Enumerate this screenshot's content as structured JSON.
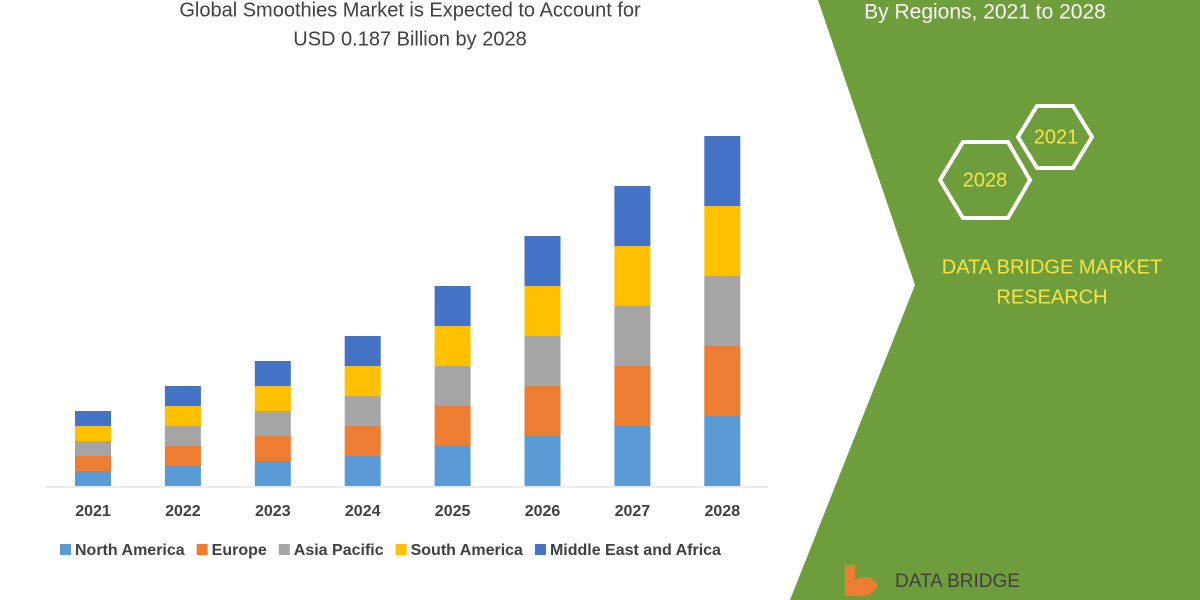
{
  "chart_data": {
    "type": "bar",
    "stacked": true,
    "title": [
      "Global Smoothies Market is Expected to Account for",
      "USD 0.187 Billion by 2028"
    ],
    "categories": [
      "2021",
      "2022",
      "2023",
      "2024",
      "2025",
      "2026",
      "2027",
      "2028"
    ],
    "series": [
      {
        "name": "North America",
        "color": "#5b9bd5",
        "values": [
          15,
          20,
          25,
          30,
          40,
          50,
          60,
          70
        ]
      },
      {
        "name": "Europe",
        "color": "#ed7d31",
        "values": [
          15,
          20,
          25,
          30,
          40,
          50,
          60,
          70
        ]
      },
      {
        "name": "Asia Pacific",
        "color": "#a5a5a5",
        "values": [
          15,
          20,
          25,
          30,
          40,
          50,
          60,
          70
        ]
      },
      {
        "name": "South America",
        "color": "#ffc000",
        "values": [
          15,
          20,
          25,
          30,
          40,
          50,
          60,
          70
        ]
      },
      {
        "name": "Middle East and Africa",
        "color": "#4472c4",
        "values": [
          15,
          20,
          25,
          30,
          40,
          50,
          60,
          70
        ]
      }
    ]
  },
  "side_panel": {
    "heading": "By Regions, 2021 to 2028",
    "badges": [
      "2021",
      "2028"
    ],
    "brand": [
      "DATA BRIDGE MARKET",
      "RESEARCH"
    ]
  },
  "logo": "DATA BRIDGE"
}
